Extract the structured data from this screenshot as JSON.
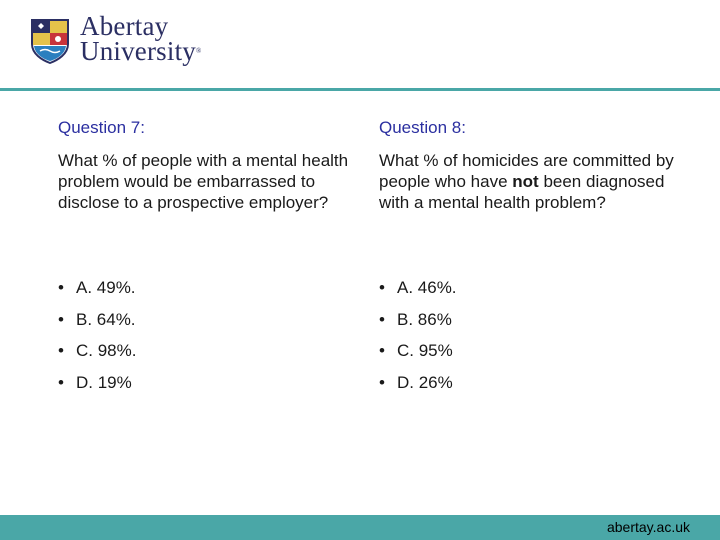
{
  "logo": {
    "line1": "Abertay",
    "line2": "University",
    "reg": "®"
  },
  "colors": {
    "brand": "#2b2f63",
    "accent": "#4aa7a7",
    "heading": "#2b2fa0"
  },
  "left": {
    "heading": "Question 7:",
    "text": "What % of people with a mental health problem would be embarrassed to disclose to a prospective employer?",
    "options": [
      "A. 49%.",
      "B. 64%.",
      "C. 98%.",
      "D. 19%"
    ]
  },
  "right": {
    "heading": "Question 8:",
    "text_before": "What % of homicides are committed by people who have ",
    "text_bold": "not",
    "text_after": " been diagnosed with a mental health problem?",
    "options": [
      "A. 46%.",
      "B. 86%",
      "C. 95%",
      "D. 26%"
    ]
  },
  "bullet": "•",
  "footer": {
    "url": "abertay.ac.uk"
  }
}
